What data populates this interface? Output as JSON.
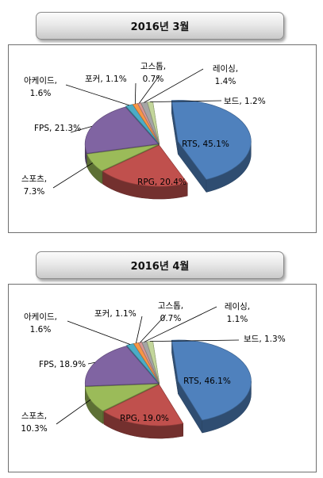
{
  "chart_data": [
    {
      "type": "pie",
      "title": "2016년 3월",
      "categories": [
        "RTS",
        "RPG",
        "스포츠",
        "FPS",
        "아케이드",
        "포커",
        "고스톱",
        "레이싱",
        "보드"
      ],
      "values": [
        45.1,
        20.4,
        7.3,
        21.3,
        1.6,
        1.1,
        0.7,
        1.4,
        1.2
      ],
      "labels": [
        "RTS, 45.1%",
        "RPG, 20.4%",
        "스포츠, 7.3%",
        "FPS, 21.3%",
        "아케이드, 1.6%",
        "포커, 1.1%",
        "고스톱, 0.7%",
        "레이싱, 1.4%",
        "보드, 1.2%"
      ],
      "exploded": "RTS",
      "style": "3d"
    },
    {
      "type": "pie",
      "title": "2016년 4월",
      "categories": [
        "RTS",
        "RPG",
        "스포츠",
        "FPS",
        "아케이드",
        "포커",
        "고스톱",
        "레이싱",
        "보드"
      ],
      "values": [
        46.1,
        19.0,
        10.3,
        18.9,
        1.6,
        1.1,
        0.7,
        1.1,
        1.3
      ],
      "labels": [
        "RTS, 46.1%",
        "RPG, 19.0%",
        "스포츠, 10.3%",
        "FPS, 18.9%",
        "아케이드, 1.6%",
        "포커, 1.1%",
        "고스톱, 0.7%",
        "레이싱, 1.1%",
        "보드, 1.3%"
      ],
      "exploded": "RTS",
      "style": "3d"
    }
  ],
  "colors": [
    "#4f81bd",
    "#c0504d",
    "#9bbb59",
    "#8064a2",
    "#4bacc6",
    "#f79646",
    "#d99694",
    "#a5a5a5",
    "#c3d69b"
  ]
}
